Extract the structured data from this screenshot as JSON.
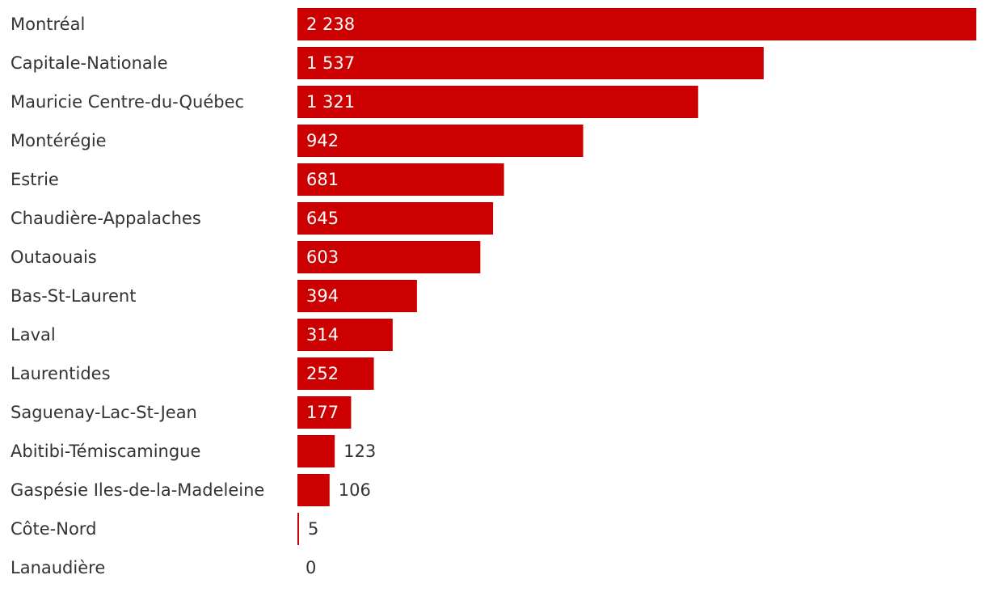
{
  "chart_data": {
    "type": "bar",
    "orientation": "horizontal",
    "categories": [
      "Montréal",
      "Capitale-Nationale",
      "Mauricie Centre-du-Québec",
      "Montérégie",
      "Estrie",
      "Chaudière-Appalaches",
      "Outaouais",
      "Bas-St-Laurent",
      "Laval",
      "Laurentides",
      "Saguenay-Lac-St-Jean",
      "Abitibi-Témiscamingue",
      "Gaspésie Iles-de-la-Madeleine",
      "Côte-Nord",
      "Lanaudière"
    ],
    "values": [
      2238,
      1537,
      1321,
      942,
      681,
      645,
      603,
      394,
      314,
      252,
      177,
      123,
      106,
      5,
      0
    ],
    "value_labels": [
      "2 238",
      "1 537",
      "1 321",
      "942",
      "681",
      "645",
      "603",
      "394",
      "314",
      "252",
      "177",
      "123",
      "106",
      "5",
      "0"
    ],
    "bar_color": "#cc0000",
    "grid": false,
    "legend": "none",
    "xlim": [
      0,
      2238
    ]
  }
}
